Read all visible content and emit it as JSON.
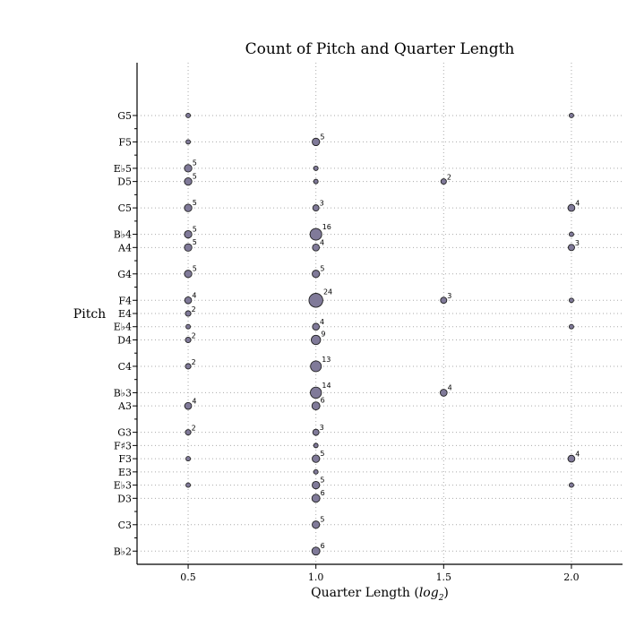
{
  "chart_data": {
    "type": "scatter",
    "title": "Count of Pitch and Quarter Length",
    "xlabel": "Quarter Length (",
    "xlabel_math": "log",
    "xlabel_sub": "2",
    "xlabel_end": ")",
    "ylabel": "Pitch",
    "xlim": [
      0.3,
      2.2
    ],
    "x_ticks": [
      0.5,
      1.0,
      1.5,
      2.0
    ],
    "x_tick_labels": [
      "0.5",
      "1.0",
      "1.5",
      "2.0"
    ],
    "y_rows_span": [
      -1,
      37
    ],
    "y_ticks": [
      {
        "row": 0,
        "label": "B♭2"
      },
      {
        "row": 2,
        "label": "C3"
      },
      {
        "row": 4,
        "label": "D3"
      },
      {
        "row": 5,
        "label": "E♭3"
      },
      {
        "row": 6,
        "label": "E3"
      },
      {
        "row": 7,
        "label": "F3"
      },
      {
        "row": 8,
        "label": "F♯3"
      },
      {
        "row": 9,
        "label": "G3"
      },
      {
        "row": 11,
        "label": "A3"
      },
      {
        "row": 12,
        "label": "B♭3"
      },
      {
        "row": 14,
        "label": "C4"
      },
      {
        "row": 16,
        "label": "D4"
      },
      {
        "row": 17,
        "label": "E♭4"
      },
      {
        "row": 18,
        "label": "E4"
      },
      {
        "row": 19,
        "label": "F4"
      },
      {
        "row": 21,
        "label": "G4"
      },
      {
        "row": 23,
        "label": "A4"
      },
      {
        "row": 24,
        "label": "B♭4"
      },
      {
        "row": 26,
        "label": "C5"
      },
      {
        "row": 28,
        "label": "D5"
      },
      {
        "row": 29,
        "label": "E♭5"
      },
      {
        "row": 31,
        "label": "F5"
      },
      {
        "row": 33,
        "label": "G5"
      }
    ],
    "minor_rows": [
      1,
      3,
      10,
      13,
      15,
      20,
      22,
      25,
      27,
      30,
      32
    ],
    "grid": true,
    "marker_color": "#807a99",
    "marker_edge": "#222222",
    "points": [
      {
        "pitch": "G5",
        "x": 0.5,
        "count": 1
      },
      {
        "pitch": "G5",
        "x": 2.0,
        "count": 1
      },
      {
        "pitch": "F5",
        "x": 0.5,
        "count": 1
      },
      {
        "pitch": "F5",
        "x": 1.0,
        "count": 5,
        "label": "5"
      },
      {
        "pitch": "E♭5",
        "x": 0.5,
        "count": 5,
        "label": "5"
      },
      {
        "pitch": "E♭5",
        "x": 1.0,
        "count": 1
      },
      {
        "pitch": "D5",
        "x": 0.5,
        "count": 5,
        "label": "5"
      },
      {
        "pitch": "D5",
        "x": 1.0,
        "count": 1
      },
      {
        "pitch": "D5",
        "x": 1.5,
        "count": 2,
        "label": "2"
      },
      {
        "pitch": "C5",
        "x": 0.5,
        "count": 5,
        "label": "5"
      },
      {
        "pitch": "C5",
        "x": 1.0,
        "count": 3,
        "label": "3"
      },
      {
        "pitch": "C5",
        "x": 2.0,
        "count": 4,
        "label": "4"
      },
      {
        "pitch": "B♭4",
        "x": 0.5,
        "count": 5,
        "label": "5"
      },
      {
        "pitch": "B♭4",
        "x": 1.0,
        "count": 16,
        "label": "16"
      },
      {
        "pitch": "B♭4",
        "x": 2.0,
        "count": 1
      },
      {
        "pitch": "A4",
        "x": 0.5,
        "count": 5,
        "label": "5"
      },
      {
        "pitch": "A4",
        "x": 1.0,
        "count": 4,
        "label": "4"
      },
      {
        "pitch": "A4",
        "x": 2.0,
        "count": 3,
        "label": "3"
      },
      {
        "pitch": "G4",
        "x": 0.5,
        "count": 5,
        "label": "5"
      },
      {
        "pitch": "G4",
        "x": 1.0,
        "count": 5,
        "label": "5"
      },
      {
        "pitch": "F4",
        "x": 0.5,
        "count": 4,
        "label": "4"
      },
      {
        "pitch": "F4",
        "x": 1.0,
        "count": 24,
        "label": "24"
      },
      {
        "pitch": "F4",
        "x": 1.5,
        "count": 3,
        "label": "3"
      },
      {
        "pitch": "F4",
        "x": 2.0,
        "count": 1
      },
      {
        "pitch": "E4",
        "x": 0.5,
        "count": 2,
        "label": "2"
      },
      {
        "pitch": "E♭4",
        "x": 0.5,
        "count": 1
      },
      {
        "pitch": "E♭4",
        "x": 1.0,
        "count": 4,
        "label": "4"
      },
      {
        "pitch": "E♭4",
        "x": 2.0,
        "count": 1
      },
      {
        "pitch": "D4",
        "x": 0.5,
        "count": 2,
        "label": "2"
      },
      {
        "pitch": "D4",
        "x": 1.0,
        "count": 9,
        "label": "9"
      },
      {
        "pitch": "C4",
        "x": 0.5,
        "count": 2,
        "label": "2"
      },
      {
        "pitch": "C4",
        "x": 1.0,
        "count": 13,
        "label": "13"
      },
      {
        "pitch": "B♭3",
        "x": 1.0,
        "count": 14,
        "label": "14"
      },
      {
        "pitch": "B♭3",
        "x": 1.5,
        "count": 4,
        "label": "4"
      },
      {
        "pitch": "A3",
        "x": 0.5,
        "count": 4,
        "label": "4"
      },
      {
        "pitch": "A3",
        "x": 1.0,
        "count": 6,
        "label": "6"
      },
      {
        "pitch": "G3",
        "x": 0.5,
        "count": 2,
        "label": "2"
      },
      {
        "pitch": "G3",
        "x": 1.0,
        "count": 3,
        "label": "3"
      },
      {
        "pitch": "F♯3",
        "x": 1.0,
        "count": 1
      },
      {
        "pitch": "F3",
        "x": 0.5,
        "count": 1
      },
      {
        "pitch": "F3",
        "x": 1.0,
        "count": 5,
        "label": "5"
      },
      {
        "pitch": "F3",
        "x": 2.0,
        "count": 4,
        "label": "4"
      },
      {
        "pitch": "E3",
        "x": 1.0,
        "count": 1
      },
      {
        "pitch": "E♭3",
        "x": 0.5,
        "count": 1
      },
      {
        "pitch": "E♭3",
        "x": 1.0,
        "count": 5,
        "label": "5"
      },
      {
        "pitch": "E♭3",
        "x": 2.0,
        "count": 1
      },
      {
        "pitch": "D3",
        "x": 1.0,
        "count": 6,
        "label": "6"
      },
      {
        "pitch": "C3",
        "x": 1.0,
        "count": 5,
        "label": "5"
      },
      {
        "pitch": "B♭2",
        "x": 1.0,
        "count": 6,
        "label": "6"
      }
    ]
  }
}
